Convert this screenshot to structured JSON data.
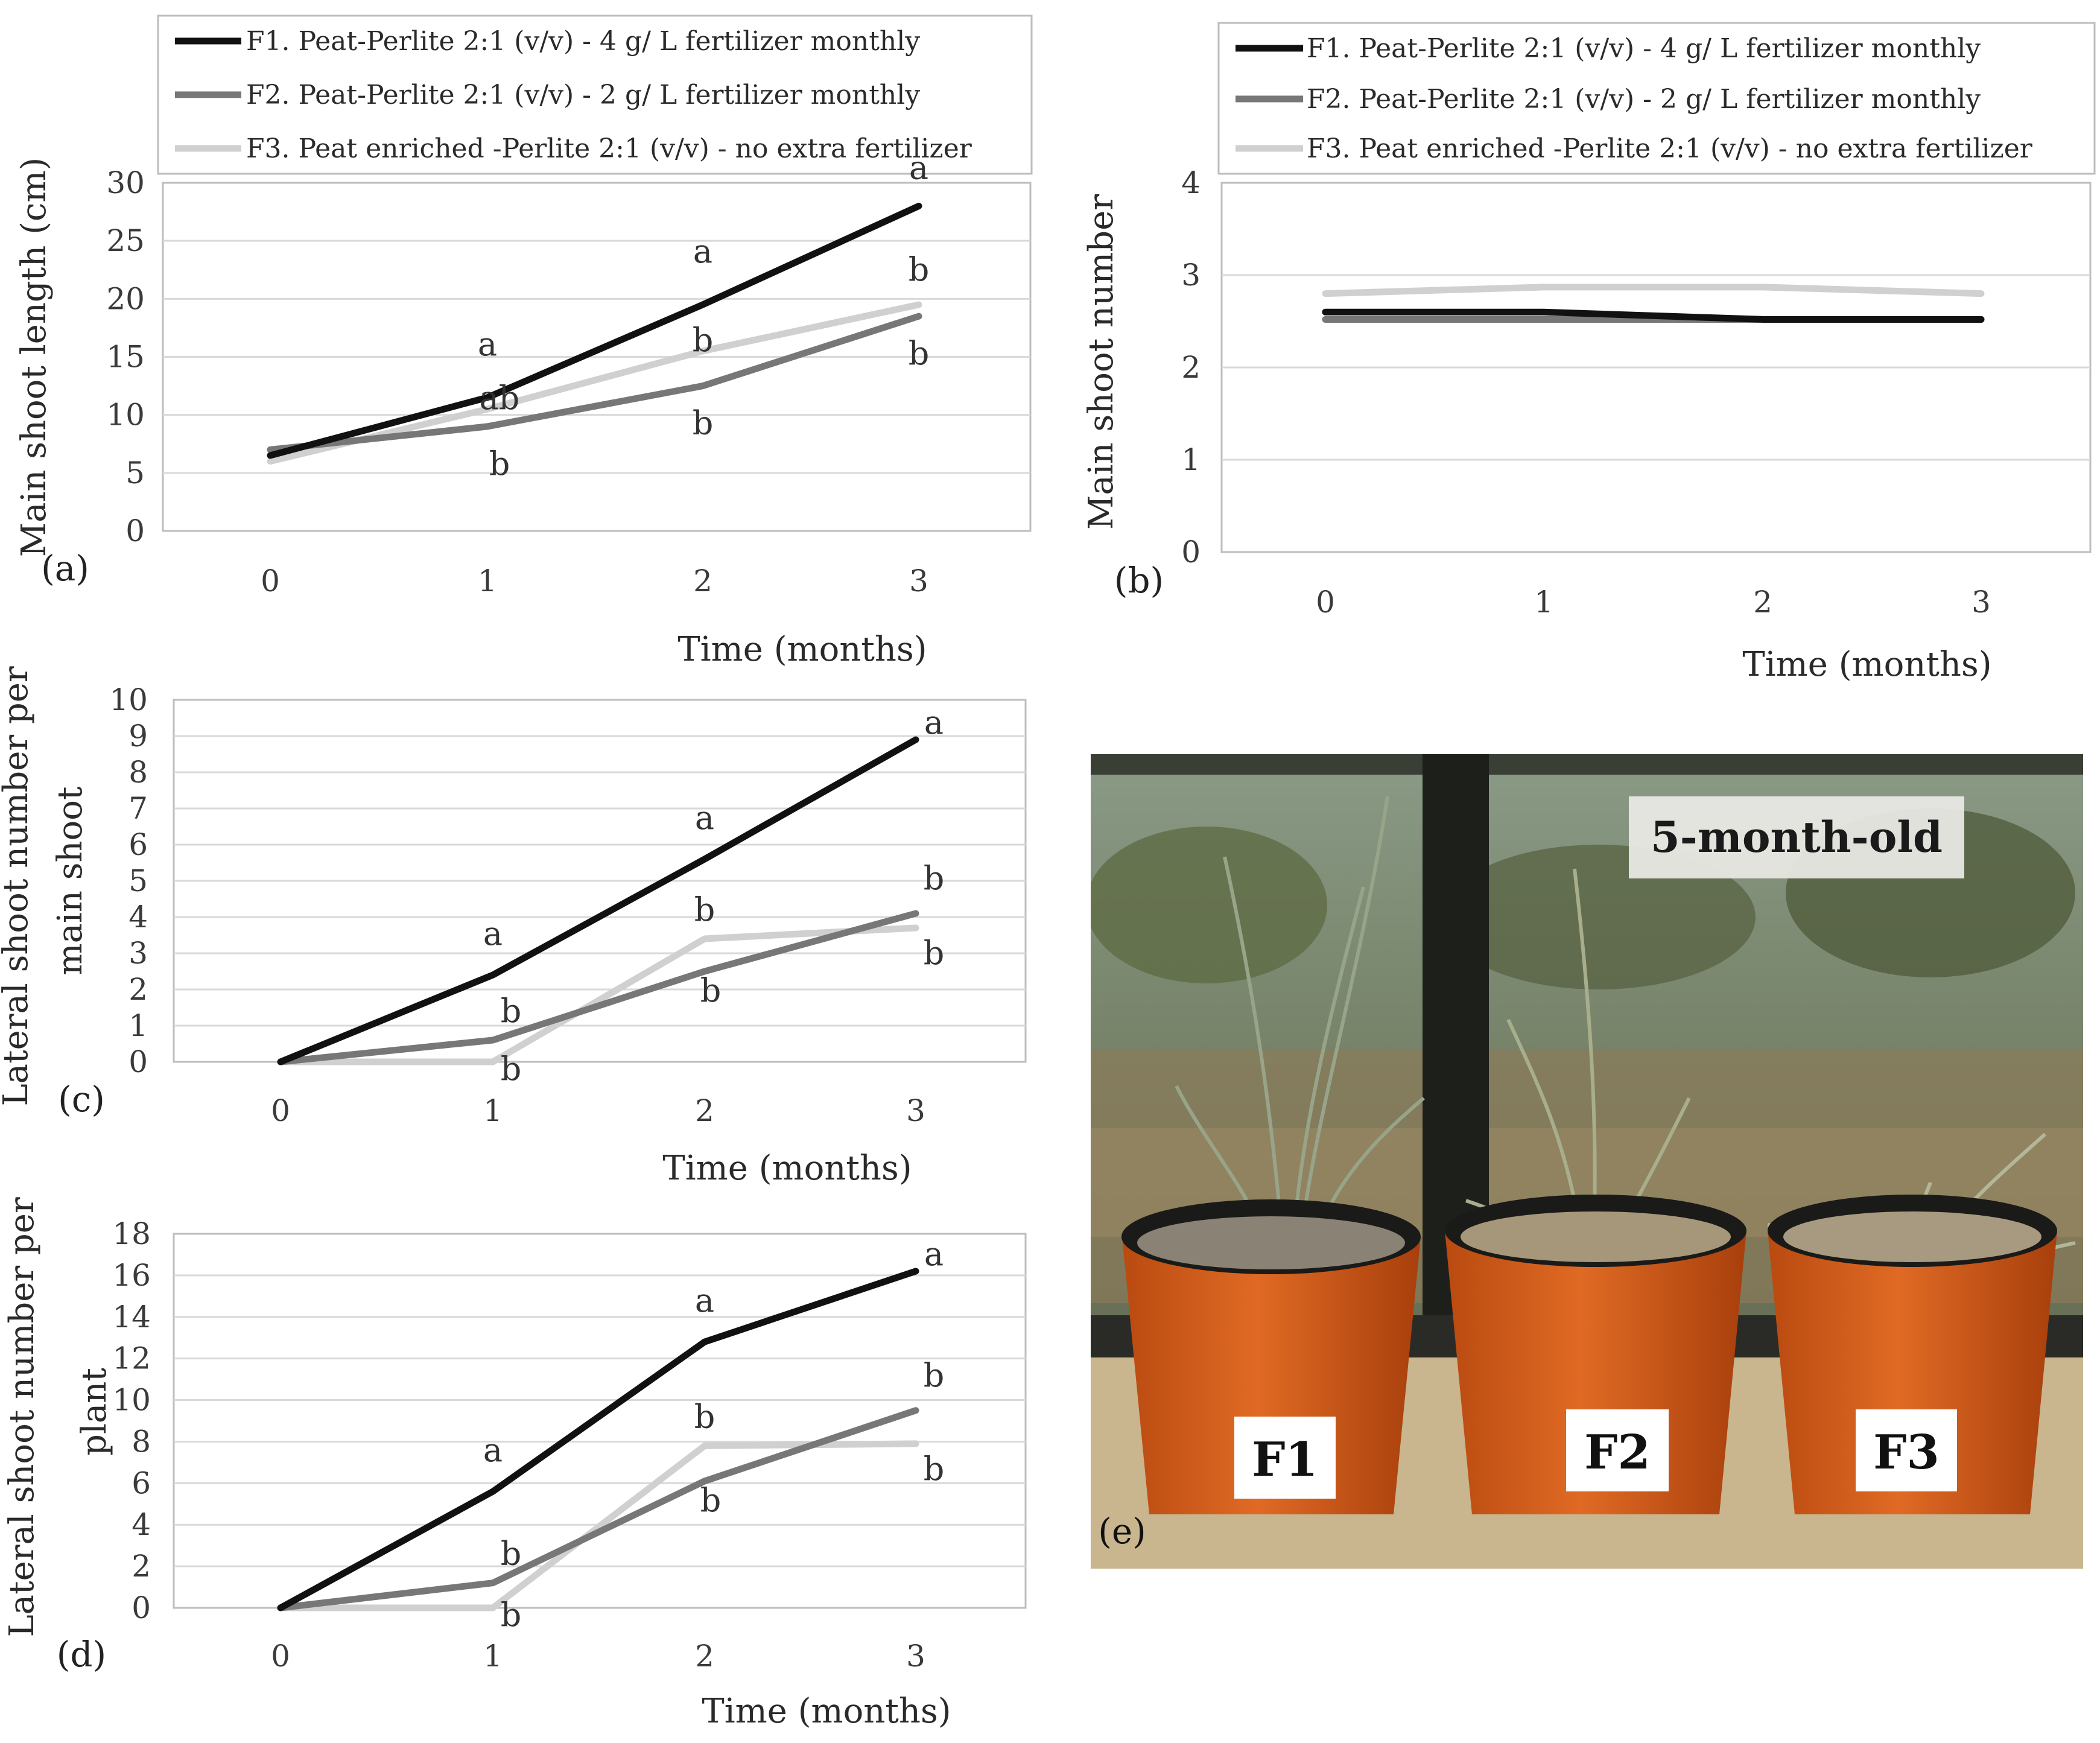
{
  "chart_data": [
    {
      "type": "line",
      "panel": "(a)",
      "ylabel": "Main shoot length (cm)",
      "xlabel": "Time (months)",
      "categories": [
        "0",
        "1",
        "2",
        "3"
      ],
      "ylim": [
        0,
        30
      ],
      "yticks": [
        "0",
        "5",
        "10",
        "15",
        "20",
        "25",
        "30"
      ],
      "grid": true,
      "legend": "top",
      "series": [
        {
          "name": "F1. Peat-Perlite 2:1 (v/v) - 4 g/ L fertilizer monthly",
          "values": [
            6.5,
            11.5,
            19.5,
            28
          ],
          "letters": [
            "",
            "a",
            "a",
            "a"
          ]
        },
        {
          "name": "F2. Peat-Perlite 2:1 (v/v) - 2 g/ L fertilizer monthly",
          "values": [
            7,
            9,
            12.5,
            18.5
          ],
          "letters": [
            "",
            "b",
            "b",
            "b"
          ]
        },
        {
          "name": "F3. Peat enriched -Perlite 2:1 (v/v) - no extra fertilizer",
          "values": [
            6,
            10.5,
            15.5,
            19.5
          ],
          "letters": [
            "",
            "ab",
            "b",
            "b"
          ]
        }
      ]
    },
    {
      "type": "line",
      "panel": "(b)",
      "ylabel": "Main shoot number",
      "xlabel": "Time (months)",
      "categories": [
        "0",
        "1",
        "2",
        "3"
      ],
      "ylim": [
        0,
        4
      ],
      "yticks": [
        "0",
        "1",
        "2",
        "3",
        "4"
      ],
      "grid": true,
      "legend": "top",
      "series": [
        {
          "name": "F1. Peat-Perlite 2:1 (v/v) - 4 g/ L fertilizer monthly",
          "values": [
            2.6,
            2.6,
            2.52,
            2.52
          ]
        },
        {
          "name": "F2. Peat-Perlite 2:1 (v/v) - 2 g/ L fertilizer monthly",
          "values": [
            2.52,
            2.52,
            2.52,
            2.52
          ]
        },
        {
          "name": "F3. Peat enriched -Perlite 2:1 (v/v) - no extra fertilizer",
          "values": [
            2.8,
            2.87,
            2.87,
            2.8
          ]
        }
      ]
    },
    {
      "type": "line",
      "panel": "(c)",
      "ylabel": "Lateral shoot number per main shoot",
      "xlabel": "Time (months)",
      "categories": [
        "0",
        "1",
        "2",
        "3"
      ],
      "ylim": [
        0,
        10
      ],
      "yticks": [
        "0",
        "1",
        "2",
        "3",
        "4",
        "5",
        "6",
        "7",
        "8",
        "9",
        "10"
      ],
      "grid": true,
      "series": [
        {
          "name": "F1",
          "values": [
            0,
            2.4,
            5.6,
            8.9
          ],
          "letters": [
            "",
            "a",
            "a",
            "a"
          ]
        },
        {
          "name": "F2",
          "values": [
            0,
            0.6,
            2.5,
            4.1
          ],
          "letters": [
            "",
            "b",
            "b",
            "b"
          ]
        },
        {
          "name": "F3",
          "values": [
            0,
            0,
            3.4,
            3.7
          ],
          "letters": [
            "",
            "b",
            "b",
            "b"
          ]
        }
      ]
    },
    {
      "type": "line",
      "panel": "(d)",
      "ylabel": "Lateral shoot number per plant",
      "xlabel": "Time (months)",
      "categories": [
        "0",
        "1",
        "2",
        "3"
      ],
      "ylim": [
        0,
        18
      ],
      "yticks": [
        "0",
        "2",
        "4",
        "6",
        "8",
        "10",
        "12",
        "14",
        "16",
        "18"
      ],
      "grid": true,
      "series": [
        {
          "name": "F1",
          "values": [
            0,
            5.6,
            12.8,
            16.2
          ],
          "letters": [
            "",
            "a",
            "a",
            "a"
          ]
        },
        {
          "name": "F2",
          "values": [
            0,
            1.2,
            6.1,
            9.5
          ],
          "letters": [
            "",
            "b",
            "b",
            "b"
          ]
        },
        {
          "name": "F3",
          "values": [
            0,
            0,
            7.8,
            7.9
          ],
          "letters": [
            "",
            "b",
            "b",
            "b"
          ]
        }
      ]
    }
  ],
  "series_colors": [
    "#111111",
    "#777777",
    "#d0d0d0"
  ],
  "photo": {
    "panel": "(e)",
    "caption": "5-month-old",
    "pots": [
      "F1",
      "F2",
      "F3"
    ]
  }
}
